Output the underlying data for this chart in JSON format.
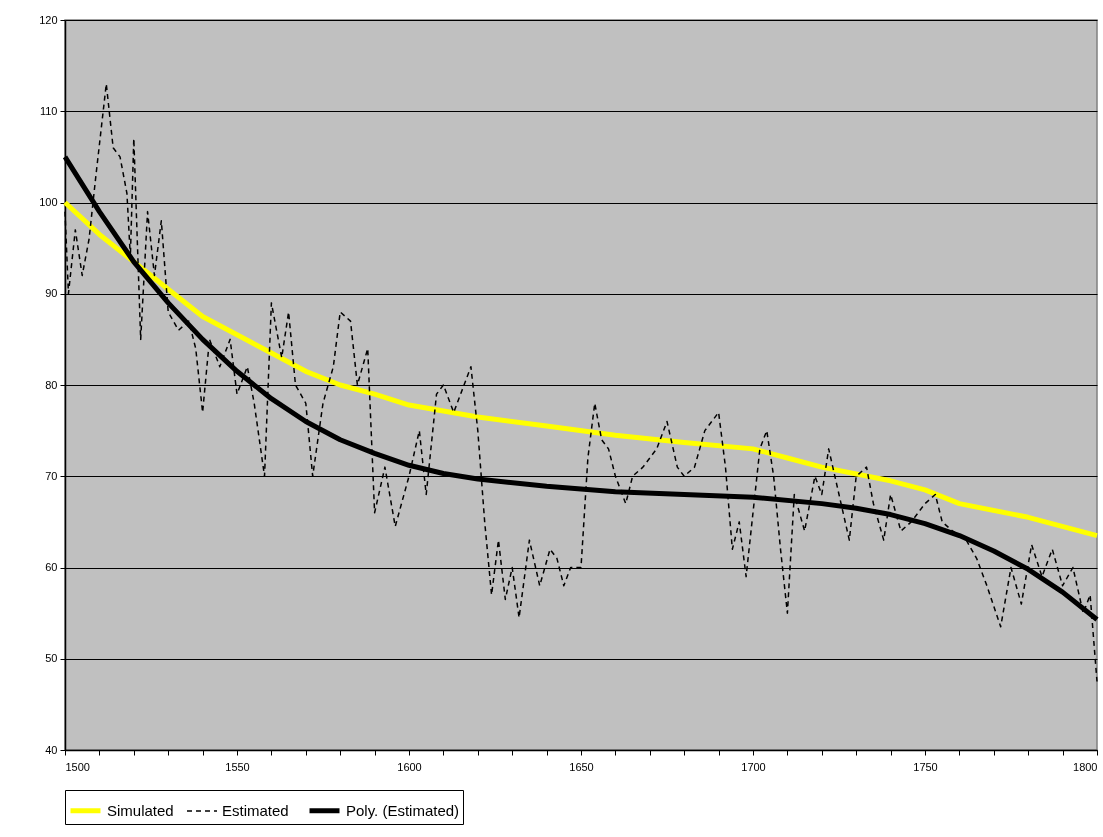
{
  "chart_data": {
    "type": "line",
    "xlim": [
      1500,
      1800
    ],
    "ylim": [
      40,
      120
    ],
    "xticks": [
      1500,
      {
        "value": 1510,
        "label": null
      },
      {
        "value": 1520,
        "label": null
      },
      {
        "value": 1530,
        "label": null
      },
      {
        "value": 1540,
        "label": null
      },
      1550,
      {
        "value": 1560,
        "label": null
      },
      {
        "value": 1570,
        "label": null
      },
      {
        "value": 1580,
        "label": null
      },
      {
        "value": 1590,
        "label": null
      },
      1600,
      {
        "value": 1610,
        "label": null
      },
      {
        "value": 1620,
        "label": null
      },
      {
        "value": 1630,
        "label": null
      },
      {
        "value": 1640,
        "label": null
      },
      1650,
      {
        "value": 1660,
        "label": null
      },
      {
        "value": 1670,
        "label": null
      },
      {
        "value": 1680,
        "label": null
      },
      {
        "value": 1690,
        "label": null
      },
      1700,
      {
        "value": 1710,
        "label": null
      },
      {
        "value": 1720,
        "label": null
      },
      {
        "value": 1730,
        "label": null
      },
      {
        "value": 1740,
        "label": null
      },
      1750,
      {
        "value": 1760,
        "label": null
      },
      {
        "value": 1770,
        "label": null
      },
      {
        "value": 1780,
        "label": null
      },
      {
        "value": 1790,
        "label": null
      },
      1800
    ],
    "yticks": [
      40,
      50,
      60,
      70,
      80,
      90,
      100,
      110,
      120
    ],
    "grid": "y",
    "legend": "bottom",
    "marker": "none",
    "series": [
      {
        "name": "Simulated",
        "color": "#ffff00",
        "line_style": "solid",
        "x": [
          1500,
          1510,
          1520,
          1530,
          1540,
          1550,
          1560,
          1570,
          1580,
          1590,
          1600,
          1620,
          1640,
          1660,
          1680,
          1700,
          1710,
          1720,
          1740,
          1750,
          1760,
          1780,
          1800
        ],
        "values": [
          100,
          96.5,
          93.5,
          90.5,
          87.5,
          85.5,
          83.5,
          81.5,
          80,
          79,
          77.8,
          76.5,
          75.5,
          74.5,
          73.7,
          73,
          72,
          71,
          69.5,
          68.5,
          67,
          65.5,
          63.5
        ]
      },
      {
        "name": "Estimated",
        "color": "#000000",
        "line_style": "dashed",
        "x": [
          1500,
          1501,
          1503,
          1505,
          1507,
          1509,
          1512,
          1514,
          1516,
          1518,
          1519,
          1520,
          1522,
          1524,
          1526,
          1528,
          1530,
          1533,
          1536,
          1538,
          1540,
          1542,
          1545,
          1548,
          1550,
          1553,
          1555,
          1558,
          1560,
          1563,
          1565,
          1567,
          1570,
          1572,
          1575,
          1578,
          1580,
          1583,
          1585,
          1588,
          1590,
          1593,
          1596,
          1600,
          1603,
          1605,
          1608,
          1610,
          1613,
          1616,
          1618,
          1620,
          1622,
          1624,
          1626,
          1628,
          1630,
          1632,
          1635,
          1638,
          1641,
          1643,
          1645,
          1647,
          1650,
          1652,
          1654,
          1656,
          1658,
          1660,
          1663,
          1665,
          1668,
          1672,
          1675,
          1678,
          1680,
          1683,
          1686,
          1690,
          1692,
          1694,
          1696,
          1698,
          1700,
          1702,
          1704,
          1706,
          1708,
          1710,
          1712,
          1715,
          1718,
          1720,
          1722,
          1725,
          1728,
          1730,
          1733,
          1735,
          1738,
          1740,
          1743,
          1746,
          1750,
          1753,
          1755,
          1758,
          1762,
          1765,
          1768,
          1772,
          1775,
          1778,
          1781,
          1784,
          1787,
          1790,
          1793,
          1796,
          1798,
          1800
        ],
        "values": [
          99,
          90,
          97,
          92,
          96,
          103,
          113,
          106,
          105,
          101,
          94,
          107,
          85,
          99,
          92,
          98,
          88,
          86,
          87,
          84,
          77,
          85,
          82,
          85,
          79,
          82,
          78,
          70,
          89,
          83,
          88,
          80,
          78,
          70,
          78,
          82,
          88,
          87,
          80,
          84,
          66,
          71,
          64.5,
          70,
          75,
          68,
          79,
          80,
          77,
          80,
          82,
          75,
          65,
          57,
          63,
          56.5,
          60,
          54.5,
          63,
          58,
          62,
          61,
          58,
          60,
          60,
          72,
          78,
          74,
          73,
          70,
          67,
          70,
          71,
          73,
          76,
          71,
          70,
          71,
          75,
          77,
          71,
          62,
          65,
          59,
          66,
          73,
          75,
          70,
          62,
          55,
          68,
          64,
          70,
          68,
          73,
          68,
          63,
          70,
          71,
          67,
          63,
          68,
          64,
          65,
          67,
          68,
          65,
          64,
          63,
          61,
          58,
          53.5,
          60,
          56,
          62.5,
          59,
          62,
          58,
          60,
          55,
          57,
          47.5
        ]
      },
      {
        "name": "Poly. (Estimated)",
        "color": "#000000",
        "line_style": "solid",
        "x": [
          1500,
          1510,
          1520,
          1530,
          1540,
          1550,
          1560,
          1570,
          1580,
          1590,
          1600,
          1610,
          1620,
          1640,
          1660,
          1680,
          1700,
          1720,
          1730,
          1740,
          1750,
          1760,
          1770,
          1780,
          1790,
          1800
        ],
        "values": [
          105,
          99,
          93.5,
          89,
          85,
          81.5,
          78.5,
          76,
          74,
          72.5,
          71.2,
          70.3,
          69.7,
          68.9,
          68.3,
          68,
          67.7,
          67,
          66.5,
          65.8,
          64.8,
          63.5,
          61.8,
          59.8,
          57.3,
          54.3
        ]
      }
    ]
  }
}
